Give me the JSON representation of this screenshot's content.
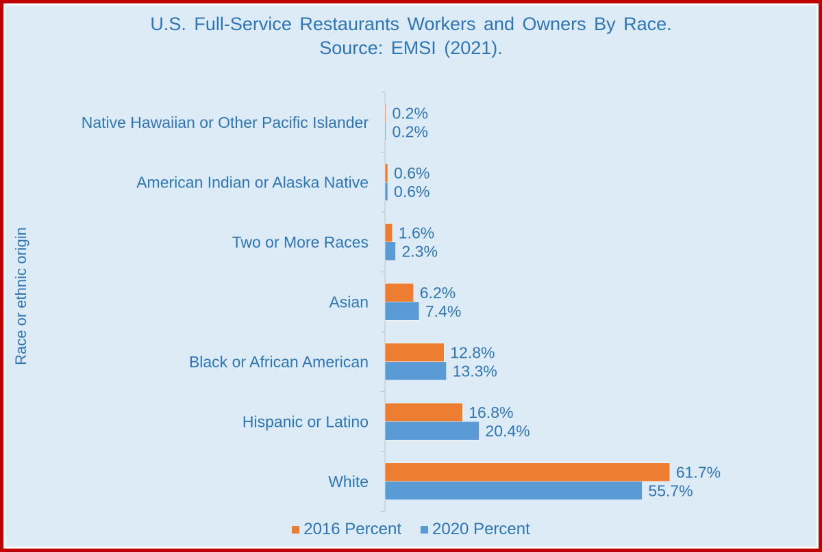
{
  "chart_data": {
    "type": "bar",
    "orientation": "horizontal",
    "title": [
      "U.S. Full-Service Restaurants Workers and Owners By Race.",
      "Source: EMSI (2021)."
    ],
    "xlabel": "",
    "ylabel": "Race or ethnic origin",
    "xlim": [
      0,
      70
    ],
    "grid": false,
    "legend_position": "bottom",
    "categories": [
      "Native Hawaiian or Other Pacific Islander",
      "American Indian or Alaska Native",
      "Two or More Races",
      "Asian",
      "Black or African American",
      "Hispanic or Latino",
      "White"
    ],
    "series": [
      {
        "name": "2016 Percent",
        "color": "#ed7d31",
        "values": [
          0.2,
          0.6,
          1.6,
          6.2,
          12.8,
          16.8,
          61.7
        ],
        "labels": [
          "0.2%",
          "0.6%",
          "1.6%",
          "6.2%",
          "12.8%",
          "16.8%",
          "61.7%"
        ]
      },
      {
        "name": "2020 Percent",
        "color": "#5b9bd5",
        "values": [
          0.2,
          0.6,
          2.3,
          7.4,
          13.3,
          20.4,
          55.7
        ],
        "labels": [
          "0.2%",
          "0.6%",
          "2.3%",
          "7.4%",
          "13.3%",
          "20.4%",
          "55.7%"
        ]
      }
    ]
  },
  "colors": {
    "border": "#c00000",
    "background": "#ddebf7",
    "text": "#2e75b6",
    "axis": "#bfbfbf"
  }
}
